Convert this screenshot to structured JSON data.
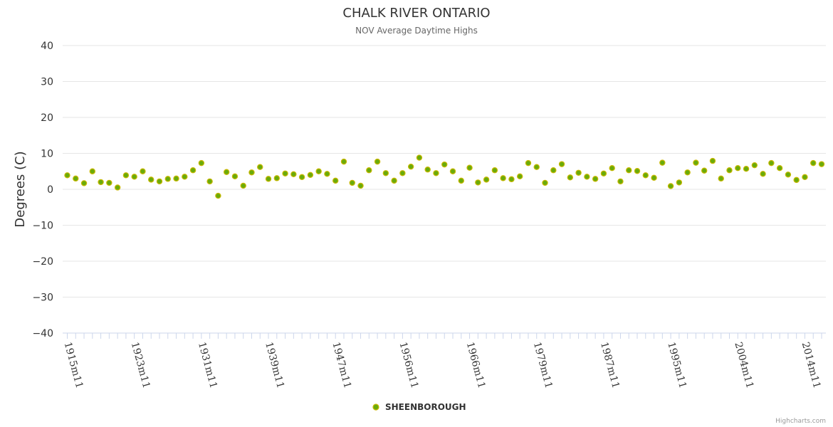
{
  "chart_data": {
    "type": "scatter",
    "title": "CHALK RIVER ONTARIO",
    "subtitle": "NOV Average Daytime Highs",
    "xlabel": "",
    "ylabel": "Degrees (C)",
    "ylim": [
      -40,
      40
    ],
    "yticks": [
      40,
      30,
      20,
      10,
      0,
      -10,
      -20,
      -30,
      -40
    ],
    "xtick_labels": [
      "1915m11",
      "1923m11",
      "1931m11",
      "1939m11",
      "1947m11",
      "1956m11",
      "1966m11",
      "1979m11",
      "1987m11",
      "1995m11",
      "2004m11",
      "2014m11"
    ],
    "xtick_indices": [
      0,
      8,
      16,
      24,
      32,
      40,
      48,
      56,
      64,
      72,
      80,
      88
    ],
    "grid": true,
    "legend": "bottom-center",
    "series": [
      {
        "name": "SHEENBOROUGH",
        "color": "#6aab0a",
        "values": [
          3.9,
          3.0,
          1.7,
          5.0,
          2.0,
          1.8,
          0.5,
          3.9,
          3.5,
          5.0,
          2.7,
          2.2,
          2.9,
          3.0,
          3.5,
          5.3,
          7.3,
          2.2,
          -1.8,
          4.8,
          3.6,
          1.0,
          4.7,
          6.2,
          2.9,
          3.1,
          4.4,
          4.2,
          3.4,
          4.0,
          5.0,
          4.3,
          2.4,
          7.7,
          1.8,
          1.0,
          5.3,
          7.7,
          4.5,
          2.4,
          4.5,
          6.3,
          8.8,
          5.5,
          4.5,
          6.9,
          5.0,
          2.4,
          6.0,
          1.9,
          2.7,
          5.3,
          3.1,
          2.8,
          3.6,
          7.3,
          6.2,
          1.8,
          5.3,
          7.0,
          3.3,
          4.6,
          3.5,
          2.9,
          4.4,
          5.9,
          2.2,
          5.3,
          5.1,
          3.9,
          3.2,
          7.4,
          0.9,
          1.9,
          4.7,
          7.4,
          5.2,
          7.9,
          3.0,
          5.3,
          5.9,
          5.7,
          6.7,
          4.3,
          7.3,
          5.9,
          4.1,
          2.6,
          3.4,
          7.3,
          7.0
        ]
      }
    ]
  },
  "credits": "Highcharts.com"
}
